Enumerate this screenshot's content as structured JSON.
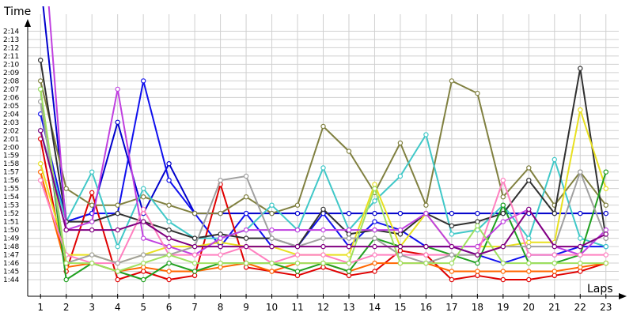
{
  "chart_data": {
    "type": "line",
    "ylabel": "Time",
    "xlabel": "Laps",
    "x": [
      1,
      2,
      3,
      4,
      5,
      6,
      7,
      8,
      9,
      10,
      11,
      12,
      13,
      14,
      15,
      16,
      17,
      18,
      19,
      20,
      21,
      22,
      23
    ],
    "xlim": [
      0.5,
      23.5
    ],
    "ylim_seconds": [
      102,
      137
    ],
    "y_tick_labels": [
      "1:44",
      "1:45",
      "1:46",
      "1:47",
      "1:48",
      "1:49",
      "1:50",
      "1:51",
      "1:52",
      "1:53",
      "1:54",
      "1:55",
      "1:56",
      "1:57",
      "1:58",
      "1:59",
      "2:00",
      "2:01",
      "2:02",
      "2:03",
      "2:04",
      "2:05",
      "2:06",
      "2:07",
      "2:08",
      "2:09",
      "2:10",
      "2:11",
      "2:12",
      "2:13",
      "2:14"
    ],
    "y_tick_seconds": [
      104,
      105,
      106,
      107,
      108,
      109,
      110,
      111,
      112,
      113,
      114,
      115,
      116,
      117,
      118,
      119,
      120,
      121,
      122,
      123,
      124,
      125,
      126,
      127,
      128,
      129,
      130,
      131,
      132,
      133,
      134
    ],
    "grid": true,
    "series": [
      {
        "color": "#0000cc",
        "values": [
          140,
          111,
          112,
          123,
          112,
          118,
          112,
          112,
          112,
          112,
          112,
          112,
          112,
          112,
          112,
          112,
          112,
          112,
          112,
          112,
          112,
          112,
          112
        ]
      },
      {
        "color": "#1010ee",
        "values": [
          124,
          111,
          112,
          112,
          128,
          116,
          112,
          108,
          112,
          108,
          108,
          112,
          108,
          111,
          110,
          108,
          108,
          107,
          106,
          107,
          107,
          108,
          108
        ]
      },
      {
        "color": "#e00000",
        "values": [
          121,
          105,
          114.5,
          104,
          105,
          104,
          104.5,
          115.5,
          105.5,
          105,
          104.5,
          105.5,
          104.5,
          105,
          107.5,
          107,
          104,
          104.5,
          104,
          104,
          104.5,
          105,
          106
        ]
      },
      {
        "color": "#ff6600",
        "values": [
          117,
          105.5,
          106,
          105,
          105.5,
          105,
          105,
          105.5,
          106,
          105,
          106,
          106,
          105,
          106,
          106,
          106,
          105,
          105,
          105,
          105,
          105,
          105.5,
          106
        ]
      },
      {
        "color": "#808040",
        "values": [
          128,
          115,
          113,
          113,
          114,
          113,
          112,
          112,
          114,
          112,
          113,
          122.5,
          119.5,
          114.5,
          120.5,
          113,
          128,
          126.5,
          114,
          117.5,
          113,
          117,
          113
        ]
      },
      {
        "color": "#40c8c8",
        "values": [
          122,
          111,
          117,
          108,
          115,
          111,
          109,
          109,
          110,
          113,
          110,
          117.5,
          110,
          113.5,
          116.5,
          121.5,
          109.5,
          110,
          113,
          109,
          118.5,
          109,
          108
        ]
      },
      {
        "color": "#303030",
        "values": [
          130.5,
          111,
          111,
          112,
          111,
          110,
          109,
          109.5,
          109,
          109,
          108,
          112.5,
          109.5,
          110,
          109.5,
          112,
          110.5,
          111,
          112,
          116,
          112,
          129.5,
          109
        ]
      },
      {
        "color": "#e8e020",
        "values": [
          118,
          107,
          107,
          106,
          107,
          108,
          108,
          108.5,
          108,
          108,
          107,
          107,
          107,
          115.5,
          108,
          112,
          108,
          108,
          108,
          108.5,
          108.5,
          124.5,
          115
        ]
      },
      {
        "color": "#20a020",
        "values": [
          127,
          104,
          106,
          105,
          104,
          106,
          105,
          106,
          106,
          106,
          105,
          106,
          105,
          109,
          108,
          108,
          107,
          106,
          113,
          106,
          106,
          107,
          117
        ]
      },
      {
        "color": "#c040e0",
        "values": [
          150,
          110,
          111,
          127,
          109,
          108,
          107,
          109,
          110,
          110,
          110,
          110,
          110,
          110,
          110,
          112,
          108,
          108,
          111,
          112.5,
          108,
          107,
          110
        ]
      },
      {
        "color": "#ff80c0",
        "values": [
          116,
          107,
          106,
          106,
          112.5,
          107,
          107,
          107,
          108,
          106,
          107,
          107,
          106,
          107,
          107,
          107,
          107,
          107,
          116,
          107,
          107,
          107,
          107
        ]
      },
      {
        "color": "#a0a0a0",
        "values": [
          125.5,
          106,
          107,
          106,
          107,
          107,
          108,
          116,
          116.5,
          109,
          108,
          109,
          109,
          109,
          107,
          106,
          107,
          107,
          108,
          108,
          108,
          117,
          109
        ]
      },
      {
        "color": "#a0e060",
        "values": [
          127,
          106,
          106,
          105,
          106,
          107,
          106,
          106,
          106,
          106,
          106,
          106,
          106,
          115,
          106,
          106,
          106,
          110.5,
          106,
          106,
          106,
          106,
          106
        ]
      },
      {
        "color": "#800080",
        "values": [
          122,
          110,
          110,
          110,
          111,
          109,
          108,
          108,
          108,
          108,
          108,
          108,
          108,
          108,
          108,
          108,
          108,
          107,
          108,
          112.5,
          108,
          108,
          109.5
        ]
      }
    ]
  }
}
